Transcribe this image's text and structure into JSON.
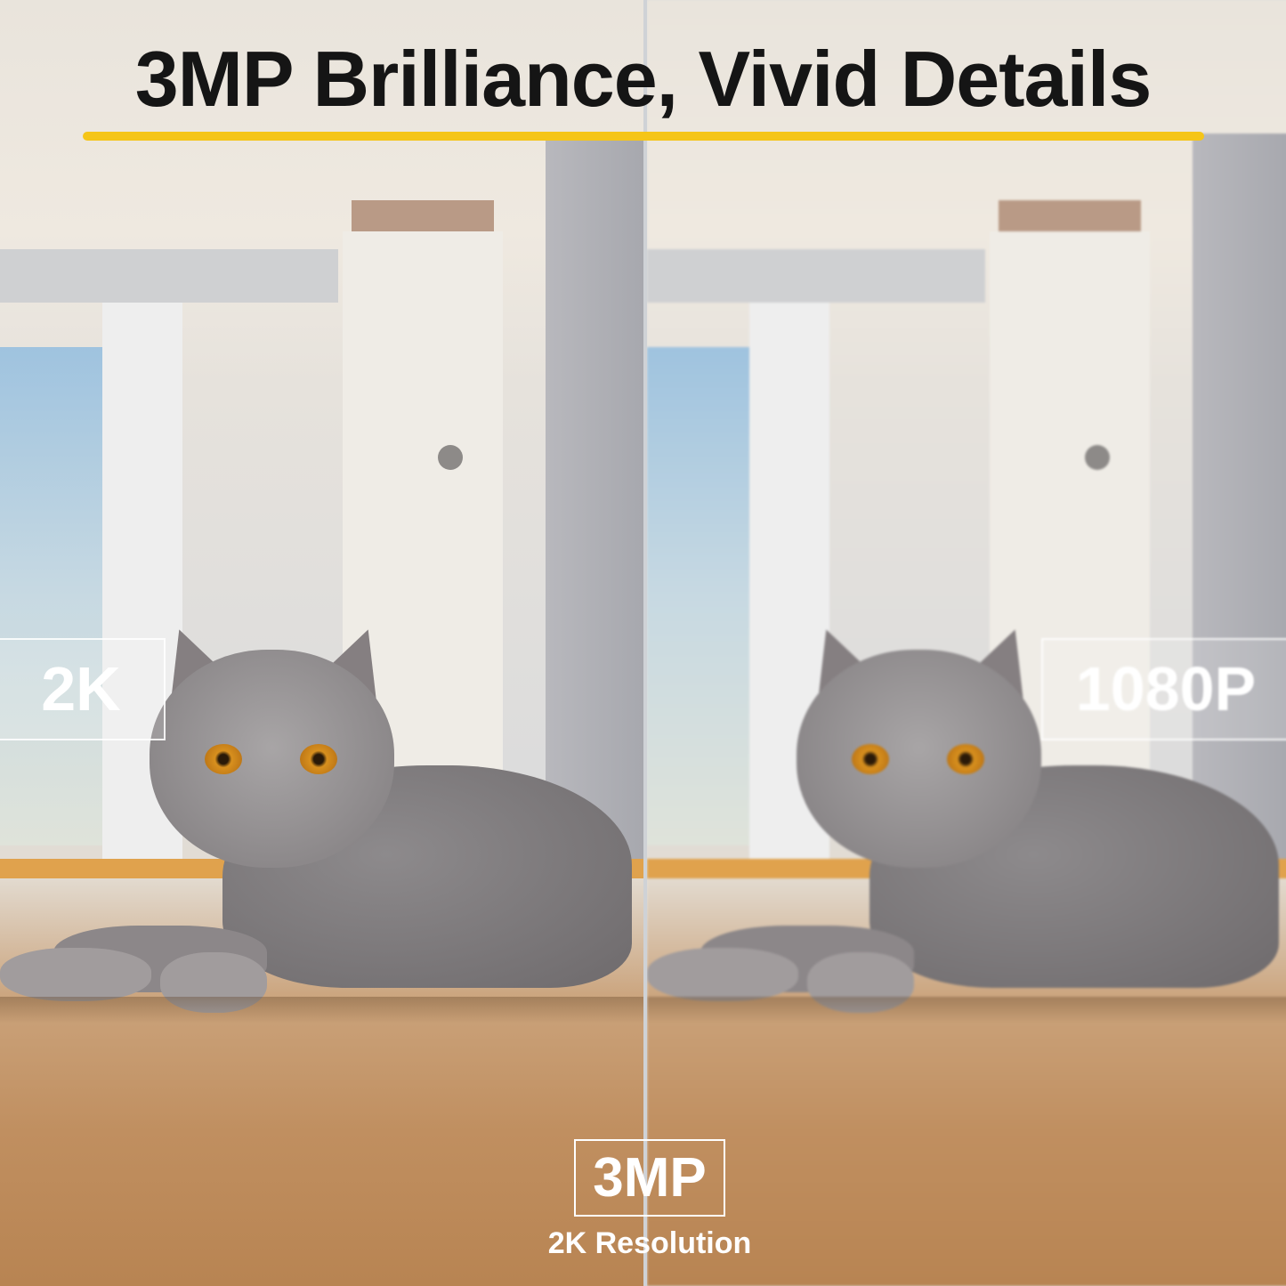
{
  "title": "3MP Brilliance, Vivid Details",
  "accent_color": "#f5c518",
  "comparison": {
    "left_label": "2K",
    "right_label": "1080P"
  },
  "badge": {
    "main": "3MP",
    "sub": "2K Resolution"
  }
}
